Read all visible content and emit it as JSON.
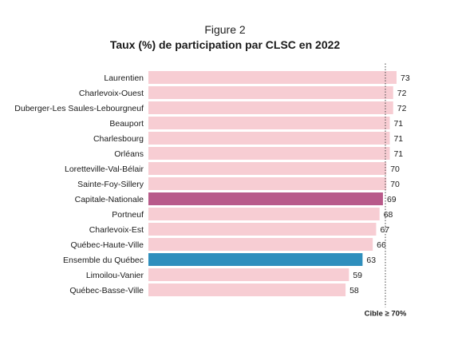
{
  "figure_label": "Figure 2",
  "chart_data": {
    "type": "bar",
    "orientation": "horizontal",
    "title": "Taux (%) de participation par CLSC en 2022",
    "categories": [
      "Laurentien",
      "Charlevoix-Ouest",
      "Duberger-Les Saules-Lebourgneuf",
      "Beauport",
      "Charlesbourg",
      "Orléans",
      "Loretteville-Val-Bélair",
      "Sainte-Foy-Sillery",
      "Capitale-Nationale",
      "Portneuf",
      "Charlevoix-Est",
      "Québec-Haute-Ville",
      "Ensemble du Québec",
      "Limoilou-Vanier",
      "Québec-Basse-Ville"
    ],
    "values": [
      73,
      72,
      72,
      71,
      71,
      71,
      70,
      70,
      69,
      68,
      67,
      66,
      63,
      59,
      58
    ],
    "value_labels": [
      "73",
      "72",
      "72",
      "71",
      "71",
      "71",
      "70",
      "70",
      "69",
      "68",
      "67",
      "66",
      "63",
      "59",
      "58"
    ],
    "highlight": {
      "Capitale-Nationale": "#b85a8a",
      "Ensemble du Québec": "#2f8fbd"
    },
    "bar_color": "#f7cdd3",
    "xlim": [
      0,
      73
    ],
    "target": {
      "value": 70,
      "label": "Cible ≥ 70%",
      "style": "dotted"
    },
    "xlabel": "",
    "ylabel": "",
    "grid": false
  }
}
